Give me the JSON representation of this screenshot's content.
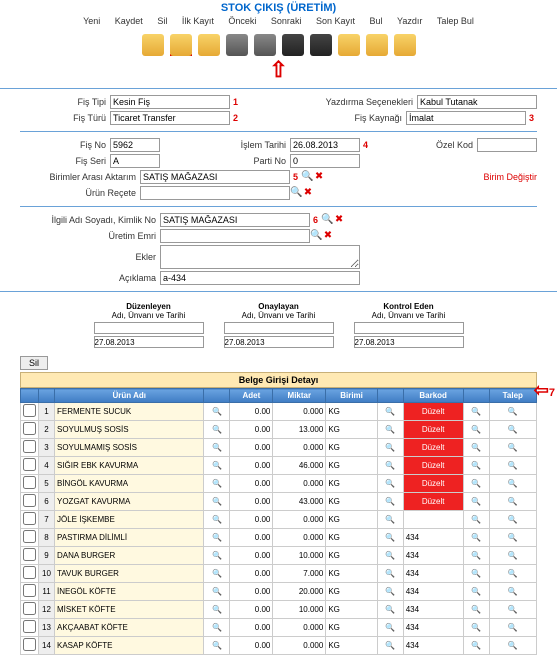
{
  "title": "STOK ÇIKIŞ (ÜRETİM)",
  "menu": [
    "Yeni",
    "Kaydet",
    "Sil",
    "İlk Kayıt",
    "Önceki",
    "Sonraki",
    "Son Kayıt",
    "Bul",
    "Yazdır",
    "Talep Bul"
  ],
  "nums": {
    "n1": "1",
    "n2": "2",
    "n3": "3",
    "n4": "4",
    "n5": "5",
    "n6": "6",
    "n7": "7"
  },
  "labels": {
    "fisTipi": "Fiş Tipi",
    "fisTuru": "Fiş Türü",
    "fisNo": "Fiş No",
    "fisSeri": "Fiş Seri",
    "yazdirma": "Yazdırma Seçenekleri",
    "fisKaynagi": "Fiş Kaynağı",
    "islemTarihi": "İşlem Tarihi",
    "partiNo": "Parti No",
    "ozelKod": "Özel Kod",
    "birimler": "Birimler Arası Aktarım",
    "urunRecete": "Ürün Reçete",
    "ilgili": "İlgili Adı Soyadı, Kimlik No",
    "uretimEmri": "Üretim Emri",
    "ekler": "Ekler",
    "aciklama": "Açıklama",
    "birimDeg": "Birim Değiştir"
  },
  "values": {
    "fisTipi": "Kesin Fiş",
    "fisTuru": "Ticaret Transfer",
    "yazdirma": "Kabul Tutanak",
    "fisKaynagi": "İmalat",
    "fisNo": "5962",
    "fisSeri": "A",
    "islemTarihi": "26.08.2013",
    "partiNo": "0",
    "ozelKod": "",
    "magaza": "SATIŞ MAĞAZASI",
    "magaza2": "SATIŞ MAĞAZASI",
    "aciklama": "a-434"
  },
  "sig": {
    "duz": {
      "h": "Düzenleyen",
      "s": "Adı, Ünvanı ve Tarihi",
      "d": "27.08.2013"
    },
    "ona": {
      "h": "Onaylayan",
      "s": "Adı, Ünvanı ve Tarihi",
      "d": "27.08.2013"
    },
    "kon": {
      "h": "Kontrol Eden",
      "s": "Adı, Ünvanı ve Tarihi",
      "d": "27.08.2013"
    }
  },
  "sil": "Sil",
  "detailTitle": "Belge Girişi Detayı",
  "cols": [
    "",
    "",
    "Ürün Adı",
    "",
    "Adet",
    "Miktar",
    "Birimi",
    "",
    "Barkod",
    "",
    "Talep"
  ],
  "rows": [
    {
      "i": 1,
      "name": "FERMENTE SUCUK",
      "adet": "0.00",
      "miktar": "0.000",
      "birim": "KG",
      "barRed": true,
      "bar": "Düzelt",
      "talep": ""
    },
    {
      "i": 2,
      "name": "SOYULMUŞ SOSİS",
      "adet": "0.00",
      "miktar": "13.000",
      "birim": "KG",
      "barRed": true,
      "bar": "Düzelt",
      "talep": ""
    },
    {
      "i": 3,
      "name": "SOYULMAMIŞ SOSİS",
      "adet": "0.00",
      "miktar": "0.000",
      "birim": "KG",
      "barRed": true,
      "bar": "Düzelt",
      "talep": ""
    },
    {
      "i": 4,
      "name": "SIĞIR EBK KAVURMA",
      "adet": "0.00",
      "miktar": "46.000",
      "birim": "KG",
      "barRed": true,
      "bar": "Düzelt",
      "talep": ""
    },
    {
      "i": 5,
      "name": "BİNGÖL KAVURMA",
      "adet": "0.00",
      "miktar": "0.000",
      "birim": "KG",
      "barRed": true,
      "bar": "Düzelt",
      "talep": ""
    },
    {
      "i": 6,
      "name": "YOZGAT KAVURMA",
      "adet": "0.00",
      "miktar": "43.000",
      "birim": "KG",
      "barRed": true,
      "bar": "Düzelt",
      "talep": ""
    },
    {
      "i": 7,
      "name": "JÖLE İŞKEMBE",
      "adet": "0.00",
      "miktar": "0.000",
      "birim": "KG",
      "barRed": false,
      "bar": "",
      "talep": ""
    },
    {
      "i": 8,
      "name": "PASTIRMA DİLİMLİ",
      "adet": "0.00",
      "miktar": "0.000",
      "birim": "KG",
      "barRed": false,
      "bar": "434",
      "talep": ""
    },
    {
      "i": 9,
      "name": "DANA BURGER",
      "adet": "0.00",
      "miktar": "10.000",
      "birim": "KG",
      "barRed": false,
      "bar": "434",
      "talep": ""
    },
    {
      "i": 10,
      "name": "TAVUK BURGER",
      "adet": "0.00",
      "miktar": "7.000",
      "birim": "KG",
      "barRed": false,
      "bar": "434",
      "talep": ""
    },
    {
      "i": 11,
      "name": "İNEGÖL KÖFTE",
      "adet": "0.00",
      "miktar": "20.000",
      "birim": "KG",
      "barRed": false,
      "bar": "434",
      "talep": ""
    },
    {
      "i": 12,
      "name": "MİSKET KÖFTE",
      "adet": "0.00",
      "miktar": "10.000",
      "birim": "KG",
      "barRed": false,
      "bar": "434",
      "talep": ""
    },
    {
      "i": 13,
      "name": "AKÇAABAT KÖFTE",
      "adet": "0.00",
      "miktar": "0.000",
      "birim": "KG",
      "barRed": false,
      "bar": "434",
      "talep": ""
    },
    {
      "i": 14,
      "name": "KASAP KÖFTE",
      "adet": "0.00",
      "miktar": "0.000",
      "birim": "KG",
      "barRed": false,
      "bar": "434",
      "talep": ""
    }
  ]
}
